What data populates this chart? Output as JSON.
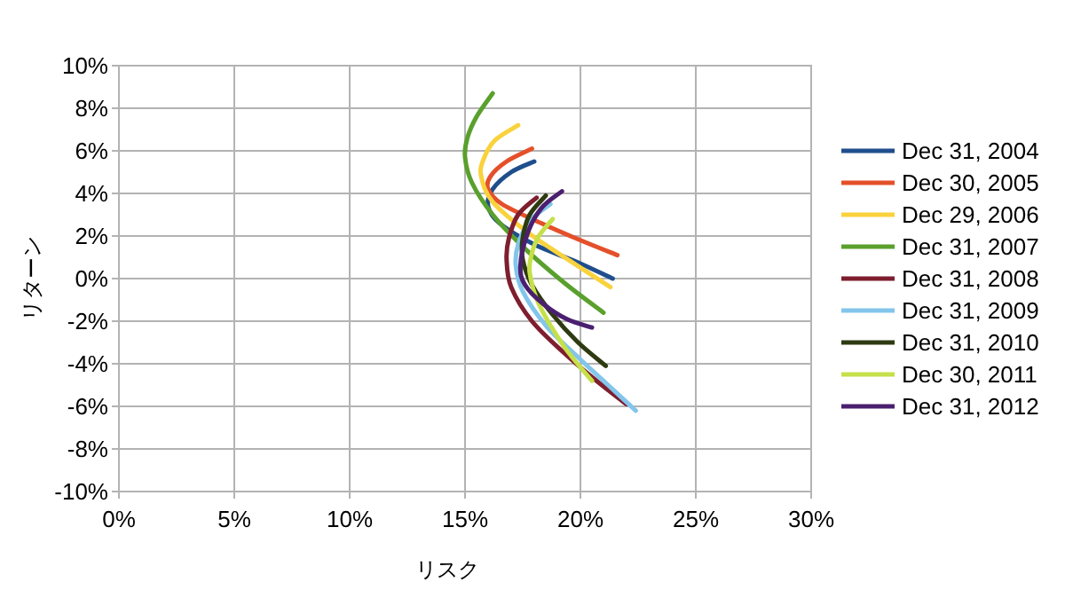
{
  "chart_data": {
    "type": "line",
    "xlabel": "リスク",
    "ylabel": "リターン",
    "xlim": [
      0,
      30
    ],
    "ylim": [
      -10,
      10
    ],
    "xticks": [
      {
        "value": 0,
        "label": "0%"
      },
      {
        "value": 5,
        "label": "5%"
      },
      {
        "value": 10,
        "label": "10%"
      },
      {
        "value": 15,
        "label": "15%"
      },
      {
        "value": 20,
        "label": "20%"
      },
      {
        "value": 25,
        "label": "25%"
      },
      {
        "value": 30,
        "label": "30%"
      }
    ],
    "yticks": [
      {
        "value": -10,
        "label": "-10%"
      },
      {
        "value": -8,
        "label": "-8%"
      },
      {
        "value": -6,
        "label": "-6%"
      },
      {
        "value": -4,
        "label": "-4%"
      },
      {
        "value": -2,
        "label": "-2%"
      },
      {
        "value": 0,
        "label": "0%"
      },
      {
        "value": 2,
        "label": "2%"
      },
      {
        "value": 4,
        "label": "4%"
      },
      {
        "value": 6,
        "label": "6%"
      },
      {
        "value": 8,
        "label": "8%"
      },
      {
        "value": 10,
        "label": "10%"
      }
    ],
    "grid": true,
    "legend": "right",
    "series": [
      {
        "name": "Dec 31, 2004",
        "color": "#1f4e8c",
        "x": [
          18.0,
          17.0,
          16.2,
          16.0,
          16.5,
          18.0,
          19.8,
          21.4
        ],
        "values": [
          5.5,
          5.0,
          4.2,
          3.4,
          2.6,
          1.6,
          0.8,
          0.0
        ]
      },
      {
        "name": "Dec 30, 2005",
        "color": "#e4502a",
        "x": [
          17.9,
          16.8,
          16.1,
          16.0,
          16.6,
          18.3,
          20.0,
          21.6
        ],
        "values": [
          6.1,
          5.5,
          4.8,
          4.2,
          3.5,
          2.6,
          1.8,
          1.1
        ]
      },
      {
        "name": "Dec 29, 2006",
        "color": "#f9d23c",
        "x": [
          17.3,
          16.3,
          15.8,
          15.7,
          16.2,
          17.8,
          19.6,
          21.3
        ],
        "values": [
          7.2,
          6.5,
          5.6,
          4.8,
          3.6,
          2.1,
          0.8,
          -0.4
        ]
      },
      {
        "name": "Dec 31, 2007",
        "color": "#5aa02c",
        "x": [
          16.2,
          15.5,
          15.1,
          15.0,
          15.3,
          16.2,
          17.6,
          19.3,
          21.0
        ],
        "values": [
          8.7,
          7.6,
          6.6,
          5.7,
          4.5,
          3.0,
          1.4,
          -0.2,
          -1.6
        ]
      },
      {
        "name": "Dec 31, 2008",
        "color": "#7e1e2e",
        "x": [
          18.1,
          17.3,
          16.9,
          16.8,
          17.0,
          17.9,
          19.3,
          20.7,
          22.0
        ],
        "values": [
          3.8,
          3.0,
          1.9,
          0.9,
          -0.4,
          -2.0,
          -3.5,
          -4.8,
          -5.9
        ]
      },
      {
        "name": "Dec 31, 2009",
        "color": "#83c5eb",
        "x": [
          18.7,
          17.8,
          17.3,
          17.2,
          17.5,
          18.5,
          19.9,
          21.2,
          22.4
        ],
        "values": [
          3.5,
          2.7,
          1.6,
          0.6,
          -0.6,
          -2.2,
          -3.7,
          -5.0,
          -6.2
        ]
      },
      {
        "name": "Dec 31, 2010",
        "color": "#2e3a10",
        "x": [
          18.5,
          17.8,
          17.5,
          17.5,
          17.9,
          18.8,
          19.9,
          21.1
        ],
        "values": [
          3.9,
          3.0,
          1.9,
          0.9,
          -0.3,
          -1.7,
          -3.0,
          -4.1
        ]
      },
      {
        "name": "Dec 30, 2011",
        "color": "#c5e04a",
        "x": [
          18.8,
          18.2,
          17.9,
          17.8,
          18.2,
          19.3,
          20.5
        ],
        "values": [
          2.8,
          2.0,
          1.2,
          0.3,
          -1.2,
          -3.2,
          -4.8
        ]
      },
      {
        "name": "Dec 31, 2012",
        "color": "#4b1f6f",
        "x": [
          19.2,
          18.3,
          17.7,
          17.4,
          17.6,
          18.4,
          19.4,
          20.5
        ],
        "values": [
          4.1,
          3.3,
          2.1,
          0.6,
          -0.3,
          -1.2,
          -1.9,
          -2.3
        ]
      }
    ]
  }
}
